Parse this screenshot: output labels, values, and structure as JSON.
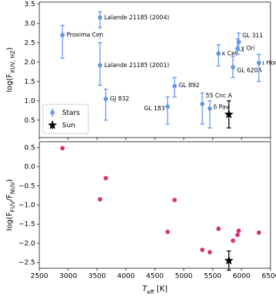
{
  "chart_data": [
    {
      "type": "errorbar",
      "xlim": [
        2500,
        6500
      ],
      "xticks": [
        2500,
        3000,
        3500,
        4000,
        4500,
        5000,
        5500,
        6000,
        6500
      ],
      "ylim": [
        0.05,
        3.55
      ],
      "yticks": [
        {
          "value": 0.5,
          "label": "0.5"
        },
        {
          "value": 1,
          "label": "1.0"
        },
        {
          "value": 1.5,
          "label": "1.5"
        },
        {
          "value": 2,
          "label": "2.0"
        },
        {
          "value": 2.5,
          "label": "2.5"
        },
        {
          "value": 3,
          "label": "3.0"
        },
        {
          "value": 3.5,
          "label": "3.5"
        }
      ],
      "ylabel": [
        "log(",
        "F",
        "XUV, HZ",
        ")"
      ],
      "legend": "lower left",
      "series": [
        {
          "name": "Stars",
          "color": "#6495ed",
          "marker": "o",
          "x": [
            2900,
            3550,
            3550,
            3650,
            4840,
            4720,
            5320,
            5450,
            5600,
            5850,
            5930,
            5950,
            6300
          ],
          "values": [
            2.7,
            3.15,
            1.92,
            1.05,
            1.38,
            0.85,
            0.92,
            0.8,
            2.22,
            1.87,
            2.35,
            2.52,
            1.98
          ],
          "lower": [
            2.1,
            2.9,
            1.4,
            0.5,
            1.1,
            0.4,
            0.4,
            0.3,
            1.9,
            1.6,
            2.2,
            2.3,
            1.5
          ],
          "upper": [
            2.95,
            3.3,
            2.5,
            1.3,
            1.6,
            1.1,
            1.2,
            1.0,
            2.45,
            2.15,
            2.6,
            2.75,
            2.2
          ],
          "point_labels": [
            "Proxima Cen",
            "Lalande 21185 (2004)",
            "Lalande 21185 (2001)",
            "GJ 832",
            "GL 892",
            "GL 183",
            "55 Cnc A",
            "δ Pav",
            "κ Cet",
            "GL 620A",
            "χ Ori",
            "GL 311",
            "ι Hor"
          ]
        },
        {
          "name": "Sun",
          "color": "#000000",
          "marker": "star",
          "x": [
            5780
          ],
          "values": [
            0.65
          ],
          "lower": [
            0.3
          ],
          "upper": [
            1.0
          ]
        }
      ]
    },
    {
      "type": "errorbar",
      "xlim": [
        2500,
        6500
      ],
      "xticks": [
        2500,
        3000,
        3500,
        4000,
        4500,
        5000,
        5500,
        6000,
        6500
      ],
      "ylim": [
        -2.65,
        0.65
      ],
      "yticks": [
        {
          "value": -2.5,
          "label": "−2.5"
        },
        {
          "value": -2,
          "label": "−2.0"
        },
        {
          "value": -1.5,
          "label": "−1.5"
        },
        {
          "value": -1,
          "label": "−1.0"
        },
        {
          "value": -0.5,
          "label": "−0.5"
        },
        {
          "value": 0,
          "label": "0.0"
        },
        {
          "value": 0.5,
          "label": "0.5"
        }
      ],
      "ylabel": [
        "log(",
        "F",
        "FUV",
        "/",
        "F",
        "NUV",
        ")"
      ],
      "xlabel": [
        "T",
        "eff",
        " [K]"
      ],
      "series": [
        {
          "color": "#d9317a",
          "marker": "o",
          "x": [
            2900,
            3550,
            3650,
            4720,
            4840,
            5320,
            5450,
            5600,
            5850,
            5930,
            5950,
            6300
          ],
          "values": [
            0.48,
            -0.85,
            -0.3,
            -1.7,
            -0.87,
            -2.17,
            -2.23,
            -1.62,
            -1.93,
            -1.78,
            -1.67,
            -1.72
          ]
        },
        {
          "color": "#000000",
          "marker": "star",
          "x": [
            5780
          ],
          "values": [
            -2.45
          ],
          "lower": [
            -2.7
          ],
          "upper": [
            -2.2
          ]
        }
      ]
    }
  ]
}
